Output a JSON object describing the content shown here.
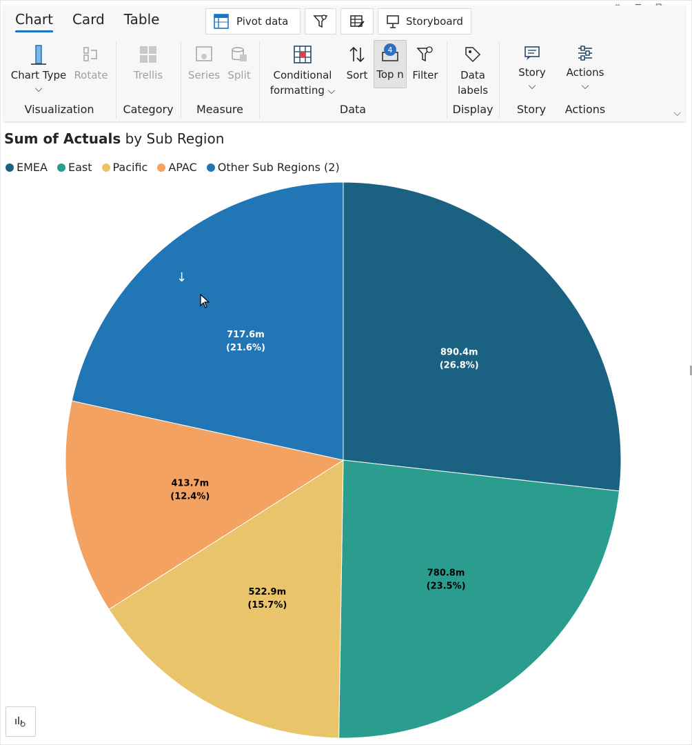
{
  "tabs": [
    {
      "label": "Chart",
      "active": true
    },
    {
      "label": "Card",
      "active": false
    },
    {
      "label": "Table",
      "active": false
    }
  ],
  "toolbar": {
    "pivot_label": "Pivot  data",
    "storyboard_label": "Storyboard"
  },
  "groups": {
    "visualization": {
      "label": "Visualization",
      "chart_type": "Chart Type",
      "rotate": "Rotate"
    },
    "category": {
      "label": "Category",
      "trellis": "Trellis"
    },
    "measure": {
      "label": "Measure",
      "series": "Series",
      "split": "Split"
    },
    "data": {
      "label": "Data",
      "conditional_line1": "Conditional",
      "conditional_line2": "formatting",
      "sort": "Sort",
      "top_n": "Top n",
      "top_n_badge": "4",
      "filter": "Filter"
    },
    "display": {
      "label": "Display",
      "data_labels_line1": "Data",
      "data_labels_line2": "labels"
    },
    "story": {
      "label": "Story",
      "btn": "Story"
    },
    "actions": {
      "label": "Actions",
      "btn": "Actions"
    }
  },
  "chart_title": {
    "bold": "Sum of Actuals",
    "rest": " by Sub Region"
  },
  "colors": {
    "emea": "#1b6282",
    "east": "#2a9d8f",
    "pacific": "#e9c46a",
    "apac": "#f4a261",
    "other": "#2176b6"
  },
  "chart_data": {
    "type": "pie",
    "title": "Sum of Actuals by Sub Region",
    "legend": "top-left",
    "slices": [
      {
        "name": "EMEA",
        "value": 890.4,
        "label": "890.4m",
        "pct": "(26.8%)",
        "color": "#1b6282",
        "text_color": "#ffffff"
      },
      {
        "name": "East",
        "value": 780.8,
        "label": "780.8m",
        "pct": "(23.5%)",
        "color": "#2a9d8f",
        "text_color": "#000000"
      },
      {
        "name": "Pacific",
        "value": 522.9,
        "label": "522.9m",
        "pct": "(15.7%)",
        "color": "#e9c46a",
        "text_color": "#000000"
      },
      {
        "name": "APAC",
        "value": 413.7,
        "label": "413.7m",
        "pct": "(12.4%)",
        "color": "#f4a261",
        "text_color": "#000000"
      },
      {
        "name": "Other Sub Regions (2)",
        "value": 717.6,
        "label": "717.6m",
        "pct": "(21.6%)",
        "color": "#2176b6",
        "text_color": "#ffffff"
      }
    ]
  }
}
